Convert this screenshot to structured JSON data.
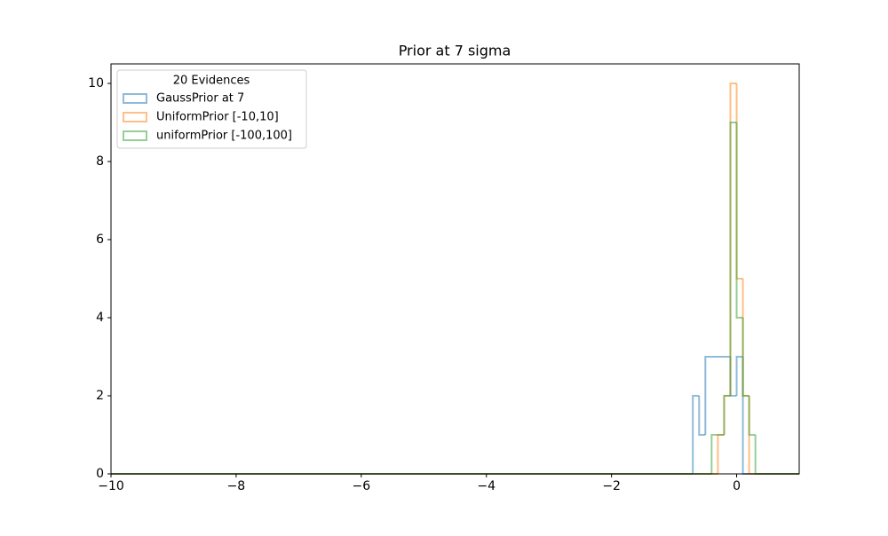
{
  "chart_data": {
    "type": "histogram",
    "title": "Prior at 7 sigma",
    "legend_title": "20 Evidences",
    "legend": "upper left",
    "bins": [
      -10,
      -9.9,
      -9.8,
      -9.7,
      -9.6,
      -9.5,
      -9.4,
      -9.3,
      -9.2,
      -9.1,
      -9,
      -8.9,
      -8.8,
      -8.7,
      -8.6,
      -8.5,
      -8.4,
      -8.3,
      -8.2,
      -8.1,
      -8,
      -7.9,
      -7.8,
      -7.7,
      -7.6,
      -7.5,
      -7.4,
      -7.3,
      -7.2,
      -7.1,
      -7,
      -6.9,
      -6.8,
      -6.7,
      -6.6,
      -6.5,
      -6.4,
      -6.3,
      -6.2,
      -6.1,
      -6,
      -5.9,
      -5.8,
      -5.7,
      -5.6,
      -5.5,
      -5.4,
      -5.3,
      -5.2,
      -5.1,
      -5,
      -4.9,
      -4.8,
      -4.7,
      -4.6,
      -4.5,
      -4.4,
      -4.3,
      -4.2,
      -4.1,
      -4,
      -3.9,
      -3.8,
      -3.7,
      -3.6,
      -3.5,
      -3.4,
      -3.3,
      -3.2,
      -3.1,
      -3,
      -2.9,
      -2.8,
      -2.7,
      -2.6,
      -2.5,
      -2.4,
      -2.3,
      -2.2,
      -2.1,
      -2,
      -1.9,
      -1.8,
      -1.7,
      -1.6,
      -1.5,
      -1.4,
      -1.3,
      -1.2,
      -1.1,
      -1,
      -0.9,
      -0.8,
      -0.7,
      -0.6,
      -0.5,
      -0.4,
      -0.3,
      -0.2,
      -0.1,
      0,
      0.1,
      0.2,
      0.3,
      0.4,
      0.5,
      0.6,
      0.7,
      0.8,
      0.9,
      1
    ],
    "series": [
      {
        "name": "GaussPrior at 7",
        "color": "#1f77b4",
        "values": [
          0,
          0,
          0,
          0,
          0,
          0,
          0,
          0,
          0,
          0,
          0,
          0,
          0,
          0,
          0,
          0,
          0,
          0,
          0,
          0,
          0,
          0,
          0,
          0,
          0,
          0,
          0,
          0,
          0,
          0,
          0,
          0,
          0,
          0,
          0,
          0,
          0,
          0,
          0,
          0,
          0,
          0,
          0,
          0,
          0,
          0,
          0,
          0,
          0,
          0,
          0,
          0,
          0,
          0,
          0,
          0,
          0,
          0,
          0,
          0,
          0,
          0,
          0,
          0,
          0,
          0,
          0,
          0,
          0,
          0,
          0,
          0,
          0,
          0,
          0,
          0,
          0,
          0,
          0,
          0,
          0,
          0,
          0,
          0,
          0,
          0,
          0,
          0,
          0,
          0,
          0,
          0,
          0,
          2,
          1,
          3,
          3,
          3,
          3,
          2,
          3,
          0,
          0,
          0,
          0,
          0,
          0,
          0,
          0,
          0
        ]
      },
      {
        "name": "UniformPrior [-10,10]",
        "color": "#ff7f0e",
        "values": [
          0,
          0,
          0,
          0,
          0,
          0,
          0,
          0,
          0,
          0,
          0,
          0,
          0,
          0,
          0,
          0,
          0,
          0,
          0,
          0,
          0,
          0,
          0,
          0,
          0,
          0,
          0,
          0,
          0,
          0,
          0,
          0,
          0,
          0,
          0,
          0,
          0,
          0,
          0,
          0,
          0,
          0,
          0,
          0,
          0,
          0,
          0,
          0,
          0,
          0,
          0,
          0,
          0,
          0,
          0,
          0,
          0,
          0,
          0,
          0,
          0,
          0,
          0,
          0,
          0,
          0,
          0,
          0,
          0,
          0,
          0,
          0,
          0,
          0,
          0,
          0,
          0,
          0,
          0,
          0,
          0,
          0,
          0,
          0,
          0,
          0,
          0,
          0,
          0,
          0,
          0,
          0,
          0,
          0,
          0,
          0,
          0,
          1,
          2,
          10,
          5,
          2,
          0,
          0,
          0,
          0,
          0,
          0,
          0,
          0
        ]
      },
      {
        "name": "uniformPrior [-100,100]",
        "color": "#2ca02c",
        "values": [
          0,
          0,
          0,
          0,
          0,
          0,
          0,
          0,
          0,
          0,
          0,
          0,
          0,
          0,
          0,
          0,
          0,
          0,
          0,
          0,
          0,
          0,
          0,
          0,
          0,
          0,
          0,
          0,
          0,
          0,
          0,
          0,
          0,
          0,
          0,
          0,
          0,
          0,
          0,
          0,
          0,
          0,
          0,
          0,
          0,
          0,
          0,
          0,
          0,
          0,
          0,
          0,
          0,
          0,
          0,
          0,
          0,
          0,
          0,
          0,
          0,
          0,
          0,
          0,
          0,
          0,
          0,
          0,
          0,
          0,
          0,
          0,
          0,
          0,
          0,
          0,
          0,
          0,
          0,
          0,
          0,
          0,
          0,
          0,
          0,
          0,
          0,
          0,
          0,
          0,
          0,
          0,
          0,
          0,
          0,
          0,
          1,
          1,
          2,
          9,
          4,
          2,
          1,
          0,
          0,
          0,
          0,
          0,
          0,
          0
        ]
      }
    ],
    "xlim": [
      -10,
      1
    ],
    "xticks": [
      {
        "value": -10,
        "label": "−10"
      },
      {
        "value": -8,
        "label": "−8"
      },
      {
        "value": -6,
        "label": "−6"
      },
      {
        "value": -4,
        "label": "−4"
      },
      {
        "value": -2,
        "label": "−2"
      },
      0
    ],
    "ylim": [
      0,
      10.5
    ],
    "yticks": [
      0,
      2,
      4,
      6,
      8,
      10
    ]
  }
}
